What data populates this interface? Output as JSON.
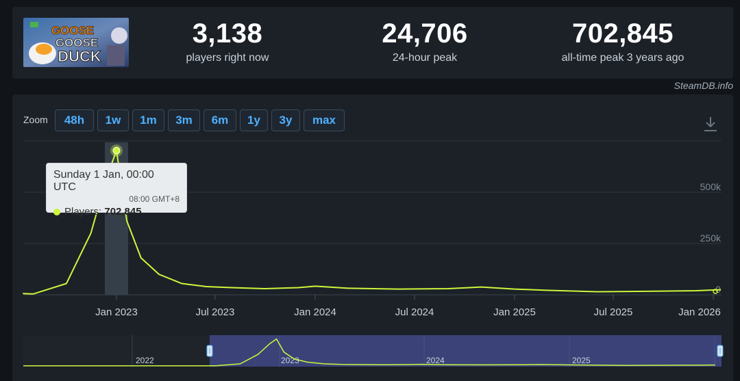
{
  "game": {
    "logo_lines": [
      "GOOSE",
      "GOOSE",
      "DUCK"
    ]
  },
  "stats": [
    {
      "value": "3,138",
      "label": "players right now"
    },
    {
      "value": "24,706",
      "label": "24-hour peak"
    },
    {
      "value": "702,845",
      "label": "all-time peak 3 years ago"
    }
  ],
  "credit": "SteamDB.info",
  "zoom": {
    "label": "Zoom",
    "buttons": [
      "48h",
      "1w",
      "1m",
      "3m",
      "6m",
      "1y",
      "3y",
      "max"
    ]
  },
  "tooltip": {
    "date": "Sunday 1 Jan, 00:00 UTC",
    "local_time": "08:00 GMT+8",
    "series_label": "Players: ",
    "value": "702,845"
  },
  "colors": {
    "line": "#cdf73a",
    "accent": "#4fb0ff",
    "background": "#1c2128"
  },
  "chart_data": {
    "type": "line",
    "series": [
      {
        "x": [
          "2022-04-01",
          "2022-06-01",
          "2022-08-01",
          "2022-10-01",
          "2022-11-15",
          "2022-12-15",
          "2023-01-01",
          "2023-01-20",
          "2023-02-15",
          "2023-03-20",
          "2023-05-01",
          "2023-06-15",
          "2023-08-01",
          "2023-10-01",
          "2023-12-01",
          "2024-01-01",
          "2024-03-01",
          "2024-06-01",
          "2024-09-01",
          "2024-11-01",
          "2025-01-01",
          "2025-03-01",
          "2025-06-01",
          "2025-09-01",
          "2025-12-01",
          "2026-01-15"
        ],
        "values": [
          5000,
          6000,
          4000,
          55000,
          300000,
          580000,
          702845,
          360000,
          180000,
          100000,
          55000,
          40000,
          35000,
          30000,
          35000,
          42000,
          32000,
          28000,
          30000,
          38000,
          28000,
          22000,
          15000,
          17000,
          20000,
          25000
        ]
      }
    ],
    "x_ticks": [
      "Jan 2023",
      "Jul 2023",
      "Jan 2024",
      "Jul 2024",
      "Jan 2025",
      "Jul 2025",
      "Jan 2026"
    ],
    "y_ticks": [
      "0",
      "250k",
      "500k"
    ],
    "ylim": [
      0,
      750000
    ],
    "grid": true,
    "highlight_x": "2023-01-01",
    "navigator": {
      "year_labels": [
        "2022",
        "2023",
        "2024",
        "2025"
      ],
      "selected_range": [
        "2022-07-01",
        "2026-01-31"
      ]
    }
  }
}
